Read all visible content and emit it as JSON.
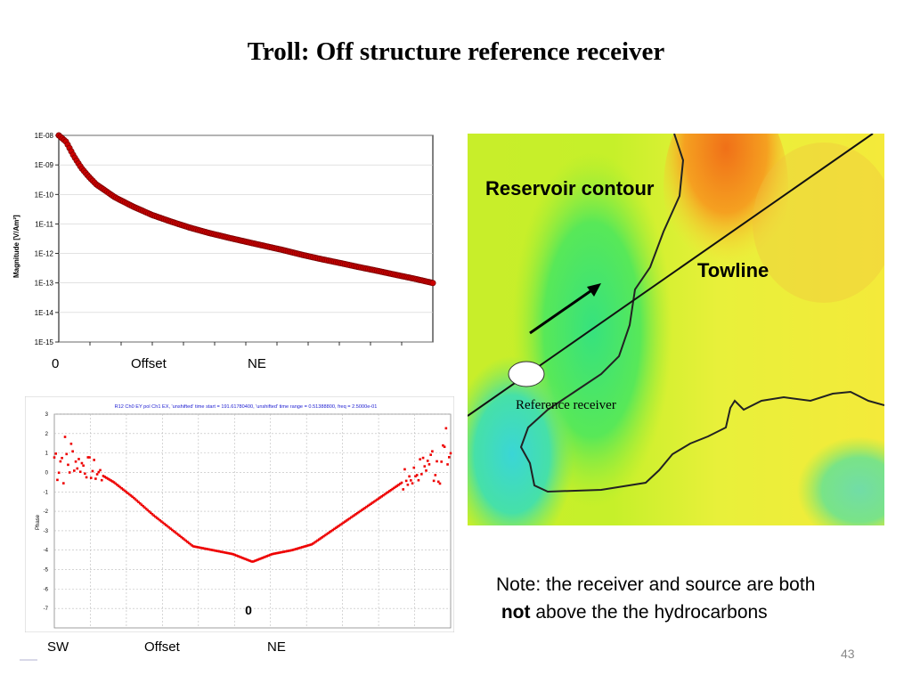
{
  "title": "Troll: Off structure reference receiver",
  "chart_data": [
    {
      "type": "scatter",
      "ylabel": "Magnitude [V/Am²]",
      "yscale": "log",
      "ylim": [
        1e-15,
        1e-08
      ],
      "yticks": [
        "1E-15",
        "1E-14",
        "1E-13",
        "1E-12",
        "1E-11",
        "1E-10",
        "1E-09",
        "1E-08"
      ],
      "xlim": [
        0,
        1
      ],
      "x": [
        0.0,
        0.02,
        0.04,
        0.06,
        0.08,
        0.1,
        0.15,
        0.2,
        0.25,
        0.3,
        0.35,
        0.4,
        0.45,
        0.5,
        0.55,
        0.6,
        0.65,
        0.7,
        0.75,
        0.8,
        0.85,
        0.9,
        0.95,
        1.0
      ],
      "y": [
        1e-08,
        6e-09,
        2e-09,
        8e-10,
        4e-10,
        2.2e-10,
        8e-11,
        3.8e-11,
        2e-11,
        1.2e-11,
        7.5e-12,
        5e-12,
        3.5e-12,
        2.5e-12,
        1.8e-12,
        1.3e-12,
        9e-13,
        6.5e-13,
        4.8e-13,
        3.5e-13,
        2.6e-13,
        1.9e-13,
        1.4e-13,
        1e-13
      ],
      "grid": true,
      "color": "#cc0000",
      "axis_words": [
        "0",
        "Offset",
        "NE"
      ]
    },
    {
      "type": "scatter",
      "title": "R12 Ch0 EY pol Ch1 EX, 'unshifted' time start = 191.61780400, 'unshifted' time range = 0.51388800,  freq = 2.5000e-01",
      "ylabel": "Phase",
      "ylim": [
        -8,
        3
      ],
      "yticks": [
        "3",
        "2",
        "1",
        "0",
        "-1",
        "-2",
        "-3",
        "-4",
        "-5",
        "-6",
        "-7"
      ],
      "xlim": [
        0,
        1
      ],
      "x": [
        0.0,
        0.05,
        0.1,
        0.15,
        0.2,
        0.25,
        0.3,
        0.35,
        0.4,
        0.45,
        0.5,
        0.55,
        0.6,
        0.65,
        0.7,
        0.75,
        0.8,
        0.85,
        0.9,
        0.95,
        1.0
      ],
      "y": [
        0.8,
        0.6,
        0.1,
        -0.5,
        -1.3,
        -2.2,
        -3.0,
        -3.8,
        -4.0,
        -4.2,
        -4.6,
        -4.2,
        -4.0,
        -3.7,
        -3.0,
        -2.3,
        -1.6,
        -0.9,
        -0.2,
        0.6,
        1.0
      ],
      "grid": true,
      "color": "#ee0000",
      "center_label": "0",
      "axis_words": [
        "SW",
        "Offset",
        "NE"
      ]
    }
  ],
  "map": {
    "reservoir_label": "Reservoir contour",
    "towline_label": "Towline",
    "reference_label": "Reference receiver"
  },
  "note": {
    "line1": "Note: the receiver and source are both",
    "bold": "not",
    "line2_rest": " above the the hydrocarbons"
  },
  "page_number": "43"
}
